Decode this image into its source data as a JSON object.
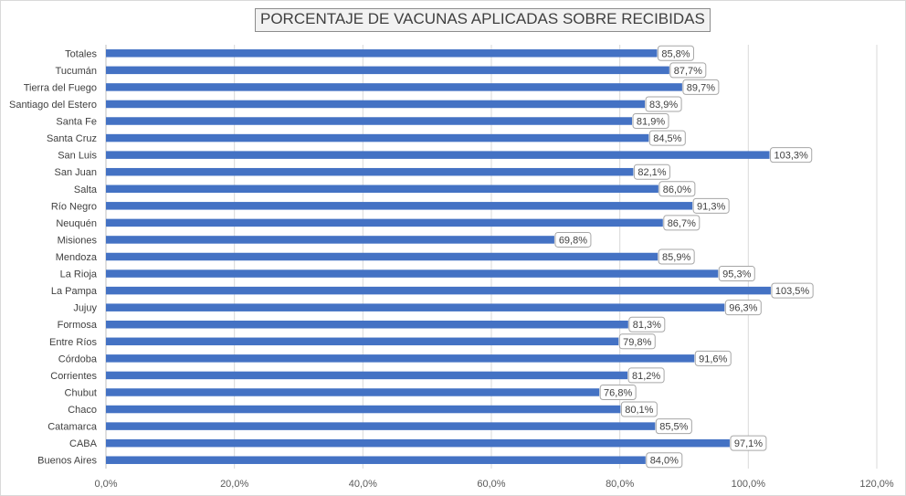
{
  "chart_data": {
    "type": "bar",
    "orientation": "horizontal",
    "title": "PORCENTAJE DE VACUNAS APLICADAS SOBRE RECIBIDAS",
    "xlabel": "",
    "ylabel": "",
    "xlim": [
      0,
      120
    ],
    "grid": "vertical",
    "legend": "none",
    "bar_color": "#4472c4",
    "categories": [
      "Totales",
      "Tucumán",
      "Tierra del Fuego",
      "Santiago del Estero",
      "Santa Fe",
      "Santa Cruz",
      "San Luis",
      "San Juan",
      "Salta",
      "Río Negro",
      "Neuquén",
      "Misiones",
      "Mendoza",
      "La Rioja",
      "La Pampa",
      "Jujuy",
      "Formosa",
      "Entre Ríos",
      "Córdoba",
      "Corrientes",
      "Chubut",
      "Chaco",
      "Catamarca",
      "CABA",
      "Buenos Aires"
    ],
    "values": [
      85.8,
      87.7,
      89.7,
      83.9,
      81.9,
      84.5,
      103.3,
      82.1,
      86.0,
      91.3,
      86.7,
      69.8,
      85.9,
      95.3,
      103.5,
      96.3,
      81.3,
      79.8,
      91.6,
      81.2,
      76.8,
      80.1,
      85.5,
      97.1,
      84.0
    ],
    "data_labels": [
      "85,8%",
      "87,7%",
      "89,7%",
      "83,9%",
      "81,9%",
      "84,5%",
      "103,3%",
      "82,1%",
      "86,0%",
      "91,3%",
      "86,7%",
      "69,8%",
      "85,9%",
      "95,3%",
      "103,5%",
      "96,3%",
      "81,3%",
      "79,8%",
      "91,6%",
      "81,2%",
      "76,8%",
      "80,1%",
      "85,5%",
      "97,1%",
      "84,0%"
    ],
    "ticks": [
      0,
      20,
      40,
      60,
      80,
      100,
      120
    ],
    "tick_labels": [
      "0,0%",
      "20,0%",
      "40,0%",
      "60,0%",
      "80,0%",
      "100,0%",
      "120,0%"
    ]
  }
}
